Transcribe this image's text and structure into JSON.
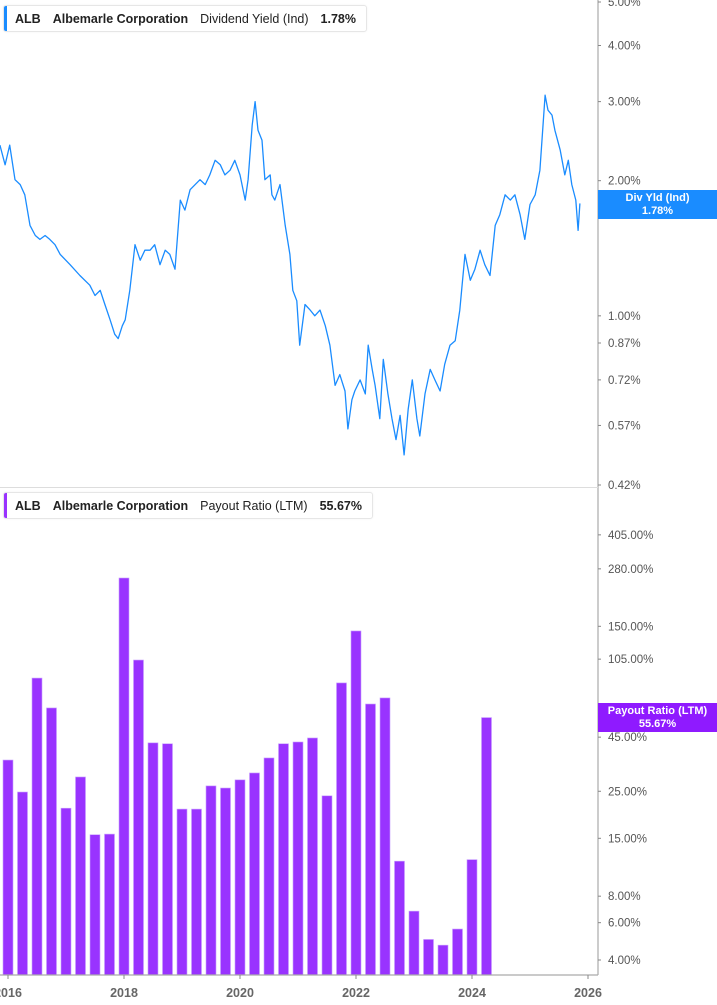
{
  "top_legend": {
    "ticker": "ALB",
    "company": "Albemarle Corporation",
    "metric": "Dividend Yield (Ind)",
    "value": "1.78%"
  },
  "bottom_legend": {
    "ticker": "ALB",
    "company": "Albemarle Corporation",
    "metric": "Payout Ratio (LTM)",
    "value": "55.67%"
  },
  "top_flag": {
    "label": "Div Yld (Ind)",
    "value": "1.78%"
  },
  "bottom_flag": {
    "label": "Payout Ratio (LTM)",
    "value": "55.67%"
  },
  "colors": {
    "line": "#1a8cff",
    "bar": "#9933ff",
    "flag_top": "#1a8cff",
    "flag_bottom": "#8f1aff"
  },
  "chart_data": [
    {
      "type": "line",
      "series": [
        {
          "name": "Dividend Yield (Ind)",
          "x": [
            2015.86,
            2015.95,
            2016.03,
            2016.12,
            2016.21,
            2016.29,
            2016.38,
            2016.47,
            2016.55,
            2016.64,
            2016.72,
            2016.81,
            2016.9,
            2017.07,
            2017.24,
            2017.41,
            2017.5,
            2017.59,
            2017.67,
            2017.76,
            2017.84,
            2017.9,
            2017.97,
            2018.02,
            2018.1,
            2018.19,
            2018.28,
            2018.36,
            2018.45,
            2018.53,
            2018.62,
            2018.71,
            2018.79,
            2018.88,
            2018.97,
            2019.05,
            2019.14,
            2019.31,
            2019.4,
            2019.48,
            2019.57,
            2019.66,
            2019.74,
            2019.83,
            2019.91,
            2020.0,
            2020.09,
            2020.14,
            2020.21,
            2020.26,
            2020.31,
            2020.38,
            2020.43,
            2020.52,
            2020.55,
            2020.6,
            2020.69,
            2020.78,
            2020.86,
            2020.91,
            2020.98,
            2021.03,
            2021.12,
            2021.21,
            2021.29,
            2021.38,
            2021.47,
            2021.55,
            2021.64,
            2021.72,
            2021.81,
            2021.86,
            2021.93,
            2021.98,
            2022.07,
            2022.16,
            2022.21,
            2022.28,
            2022.33,
            2022.41,
            2022.47,
            2022.55,
            2022.62,
            2022.69,
            2022.76,
            2022.83,
            2022.9,
            2022.97,
            2023.05,
            2023.1,
            2023.19,
            2023.28,
            2023.36,
            2023.45,
            2023.53,
            2023.62,
            2023.71,
            2023.79,
            2023.83,
            2023.88,
            2023.97,
            2024.05,
            2024.14,
            2024.22,
            2024.31,
            2024.4,
            2024.48,
            2024.57,
            2024.66,
            2024.74,
            2024.83,
            2024.91,
            2025.0,
            2025.09,
            2025.17,
            2025.26,
            2025.31,
            2025.38,
            2025.43,
            2025.52,
            2025.6,
            2025.66,
            2025.72,
            2025.79,
            2025.83,
            2025.86
          ],
          "y": [
            2.4,
            2.17,
            2.4,
            2.01,
            1.96,
            1.86,
            1.59,
            1.51,
            1.48,
            1.51,
            1.48,
            1.44,
            1.37,
            1.3,
            1.23,
            1.17,
            1.11,
            1.14,
            1.06,
            0.98,
            0.91,
            0.89,
            0.95,
            0.98,
            1.14,
            1.44,
            1.33,
            1.4,
            1.4,
            1.44,
            1.3,
            1.4,
            1.37,
            1.27,
            1.81,
            1.72,
            1.91,
            2.01,
            1.96,
            2.06,
            2.22,
            2.17,
            2.06,
            2.11,
            2.22,
            2.06,
            1.81,
            2.01,
            2.66,
            3.0,
            2.59,
            2.46,
            2.01,
            2.06,
            1.86,
            1.81,
            1.96,
            1.59,
            1.37,
            1.14,
            1.08,
            0.86,
            1.06,
            1.03,
            1.0,
            1.03,
            0.95,
            0.86,
            0.7,
            0.74,
            0.68,
            0.56,
            0.65,
            0.68,
            0.72,
            0.67,
            0.86,
            0.76,
            0.7,
            0.59,
            0.8,
            0.67,
            0.59,
            0.53,
            0.6,
            0.49,
            0.62,
            0.72,
            0.59,
            0.54,
            0.67,
            0.76,
            0.72,
            0.68,
            0.78,
            0.86,
            0.88,
            1.03,
            1.17,
            1.37,
            1.2,
            1.27,
            1.4,
            1.3,
            1.23,
            1.59,
            1.68,
            1.86,
            1.81,
            1.86,
            1.68,
            1.48,
            1.77,
            1.86,
            2.11,
            3.1,
            2.87,
            2.8,
            2.59,
            2.34,
            2.06,
            2.22,
            1.96,
            1.81,
            1.55,
            1.78
          ]
        }
      ],
      "yscale": "log",
      "ylim": [
        0.42,
        5.0
      ],
      "ytick_labels": [
        "5.00%",
        "4.00%",
        "3.00%",
        "2.00%",
        "1.00%",
        "0.87%",
        "0.72%",
        "0.57%",
        "0.42%"
      ],
      "ytick_values": [
        5.0,
        4.0,
        3.0,
        2.0,
        1.0,
        0.87,
        0.72,
        0.57,
        0.42
      ],
      "xlim": [
        2015.86,
        2026.2
      ],
      "grid": false
    },
    {
      "type": "bar",
      "series": [
        {
          "name": "Payout Ratio (LTM)",
          "x": [
            2016.0,
            2016.25,
            2016.5,
            2016.75,
            2017.0,
            2017.25,
            2017.5,
            2017.75,
            2018.0,
            2018.25,
            2018.5,
            2018.75,
            2019.0,
            2019.25,
            2019.5,
            2019.75,
            2020.0,
            2020.25,
            2020.5,
            2020.75,
            2021.0,
            2021.25,
            2021.5,
            2021.75,
            2022.0,
            2022.25,
            2022.5,
            2022.75,
            2023.0,
            2023.25,
            2023.5,
            2023.75,
            2024.0,
            2024.25
          ],
          "values": [
            35.1,
            24.8,
            85.5,
            61.8,
            20.8,
            29.2,
            15.6,
            15.7,
            253.5,
            104.0,
            42.3,
            41.9,
            20.6,
            20.6,
            26.5,
            25.9,
            28.3,
            30.5,
            35.9,
            41.9,
            42.7,
            44.6,
            23.8,
            81.1,
            142.6,
            64.5,
            68.9,
            11.7,
            6.8,
            5.0,
            4.7,
            5.6,
            11.9,
            55.67
          ]
        }
      ],
      "yscale": "log",
      "ylim": [
        3.5,
        560
      ],
      "ytick_labels": [
        "405.00%",
        "280.00%",
        "150.00%",
        "105.00%",
        "45.00%",
        "25.00%",
        "15.00%",
        "8.00%",
        "6.00%",
        "4.00%"
      ],
      "ytick_values": [
        405,
        280,
        150,
        105,
        45,
        25,
        15,
        8,
        6,
        4
      ],
      "xtick_labels": [
        "2016",
        "2018",
        "2020",
        "2022",
        "2024",
        "2026"
      ],
      "xtick_values": [
        2016,
        2018,
        2020,
        2022,
        2024,
        2026
      ],
      "grid": false
    }
  ]
}
